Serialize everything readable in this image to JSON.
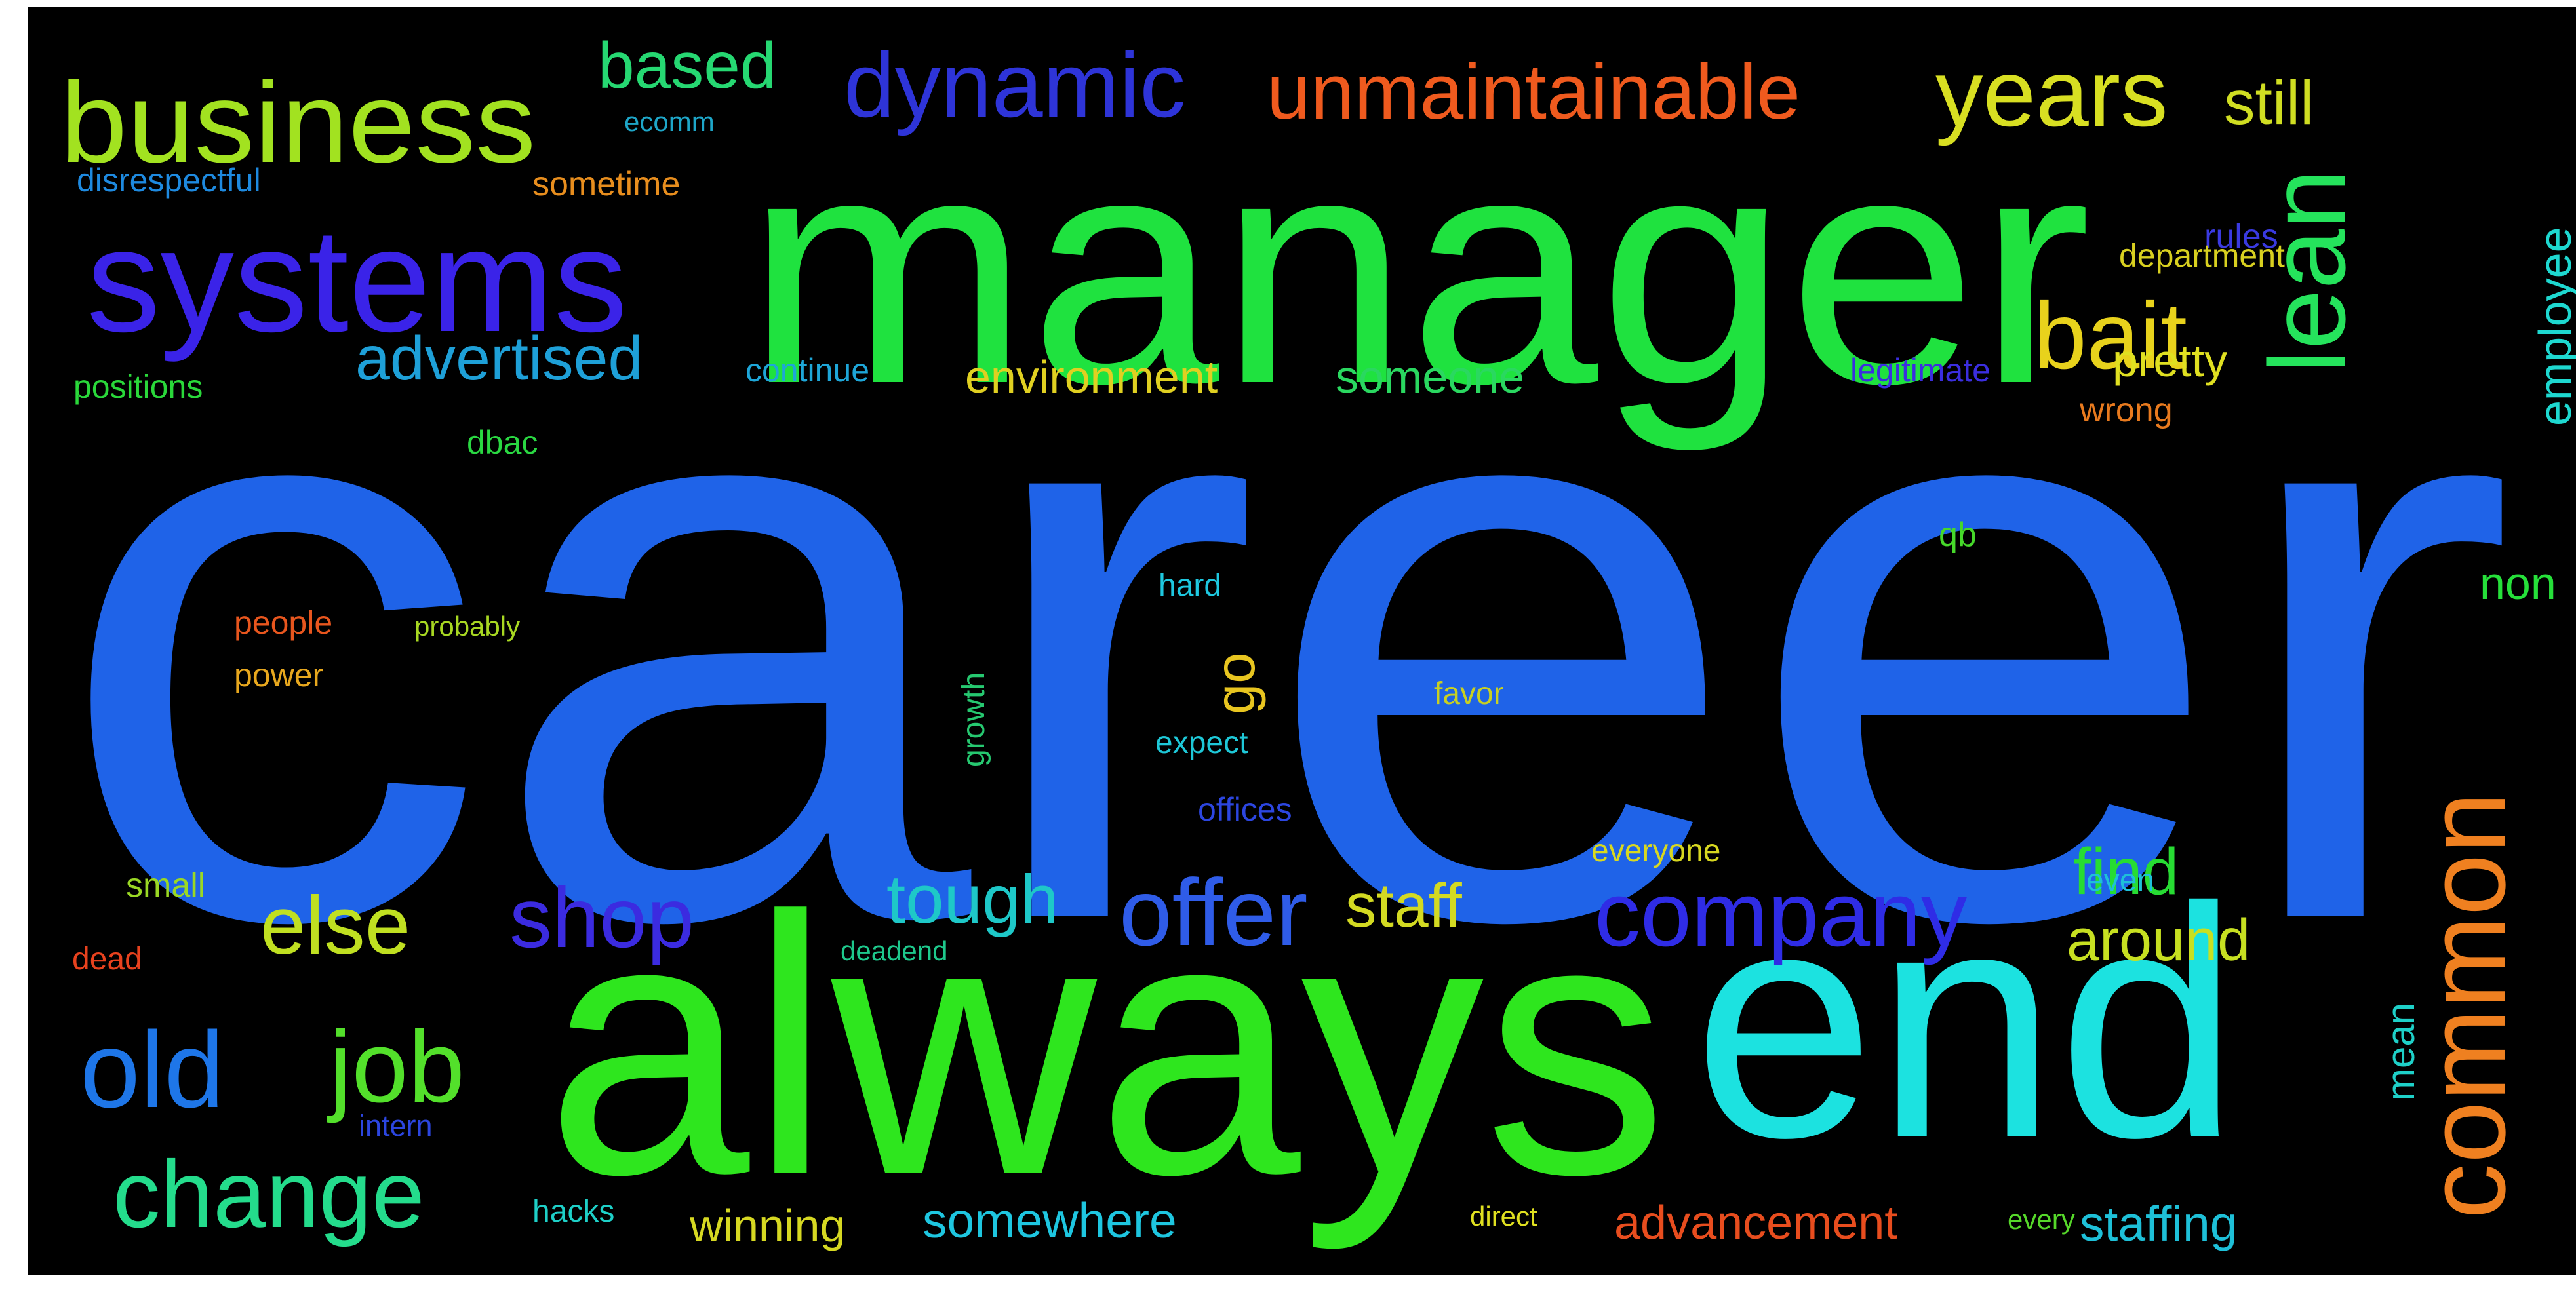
{
  "words": [
    {
      "text": "career",
      "color": "#1f63e8"
    },
    {
      "text": "manager",
      "color": "#1fe23f"
    },
    {
      "text": "always",
      "color": "#2ee61e"
    },
    {
      "text": "end",
      "color": "#1ce2e0"
    },
    {
      "text": "systems",
      "color": "#3a23e8"
    },
    {
      "text": "business",
      "color": "#a2e220"
    },
    {
      "text": "common",
      "color": "#ef8020"
    },
    {
      "text": "lean",
      "color": "#25e35c"
    },
    {
      "text": "dynamic",
      "color": "#2e34d8"
    },
    {
      "text": "unmaintainable",
      "color": "#ef5a1e"
    },
    {
      "text": "years",
      "color": "#d8df22"
    },
    {
      "text": "bait",
      "color": "#e8d21c"
    },
    {
      "text": "offer",
      "color": "#2f5ce8"
    },
    {
      "text": "company",
      "color": "#2f2ce6"
    },
    {
      "text": "change",
      "color": "#24dc8c"
    },
    {
      "text": "job",
      "color": "#53e02b"
    },
    {
      "text": "old",
      "color": "#1e76e8"
    },
    {
      "text": "else",
      "color": "#c0e021"
    },
    {
      "text": "shop",
      "color": "#3b2be0"
    },
    {
      "text": "tough",
      "color": "#1ec8c8"
    },
    {
      "text": "staff",
      "color": "#d3da22"
    },
    {
      "text": "find",
      "color": "#27dc33"
    },
    {
      "text": "around",
      "color": "#c7e021"
    },
    {
      "text": "advertised",
      "color": "#1ea0d8"
    },
    {
      "text": "based",
      "color": "#26d872"
    },
    {
      "text": "still",
      "color": "#d0de22"
    },
    {
      "text": "employee",
      "color": "#1ed8d0"
    },
    {
      "text": "environment",
      "color": "#e0d021"
    },
    {
      "text": "someone",
      "color": "#2ad860"
    },
    {
      "text": "pretty",
      "color": "#e0e021"
    },
    {
      "text": "go",
      "color": "#e8c520"
    },
    {
      "text": "somewhere",
      "color": "#1ec6e0"
    },
    {
      "text": "advancement",
      "color": "#e84d1e"
    },
    {
      "text": "staffing",
      "color": "#1ec0d8"
    },
    {
      "text": "winning",
      "color": "#d6d822"
    },
    {
      "text": "non",
      "color": "#26e03a"
    },
    {
      "text": "mean",
      "color": "#1ed0c8"
    },
    {
      "text": "disrespectful",
      "color": "#1e8ae0"
    },
    {
      "text": "ecomm",
      "color": "#1ea6c8"
    },
    {
      "text": "sometime",
      "color": "#e88e1e"
    },
    {
      "text": "rules",
      "color": "#3a3ae0"
    },
    {
      "text": "department",
      "color": "#d8d020"
    },
    {
      "text": "positions",
      "color": "#2ad83a"
    },
    {
      "text": "continue",
      "color": "#1ea6d8"
    },
    {
      "text": "legitimate",
      "color": "#3b2ee0"
    },
    {
      "text": "wrong",
      "color": "#e87a1e"
    },
    {
      "text": "dbac",
      "color": "#2ad842"
    },
    {
      "text": "qb",
      "color": "#46d82a"
    },
    {
      "text": "hard",
      "color": "#1ec8e0"
    },
    {
      "text": "people",
      "color": "#e8561e"
    },
    {
      "text": "probably",
      "color": "#a8d822"
    },
    {
      "text": "power",
      "color": "#e8a81e"
    },
    {
      "text": "growth",
      "color": "#26c870"
    },
    {
      "text": "favor",
      "color": "#c8d022"
    },
    {
      "text": "expect",
      "color": "#1ec8d8"
    },
    {
      "text": "offices",
      "color": "#2c46e0"
    },
    {
      "text": "everyone",
      "color": "#d8d820"
    },
    {
      "text": "even",
      "color": "#1ec0d8"
    },
    {
      "text": "small",
      "color": "#9ad824"
    },
    {
      "text": "dead",
      "color": "#e8421e"
    },
    {
      "text": "deadend",
      "color": "#1ec88c"
    },
    {
      "text": "intern",
      "color": "#2c46e0"
    },
    {
      "text": "hacks",
      "color": "#1ed0c8"
    },
    {
      "text": "direct",
      "color": "#e0e020"
    },
    {
      "text": "every",
      "color": "#56d82a"
    }
  ]
}
